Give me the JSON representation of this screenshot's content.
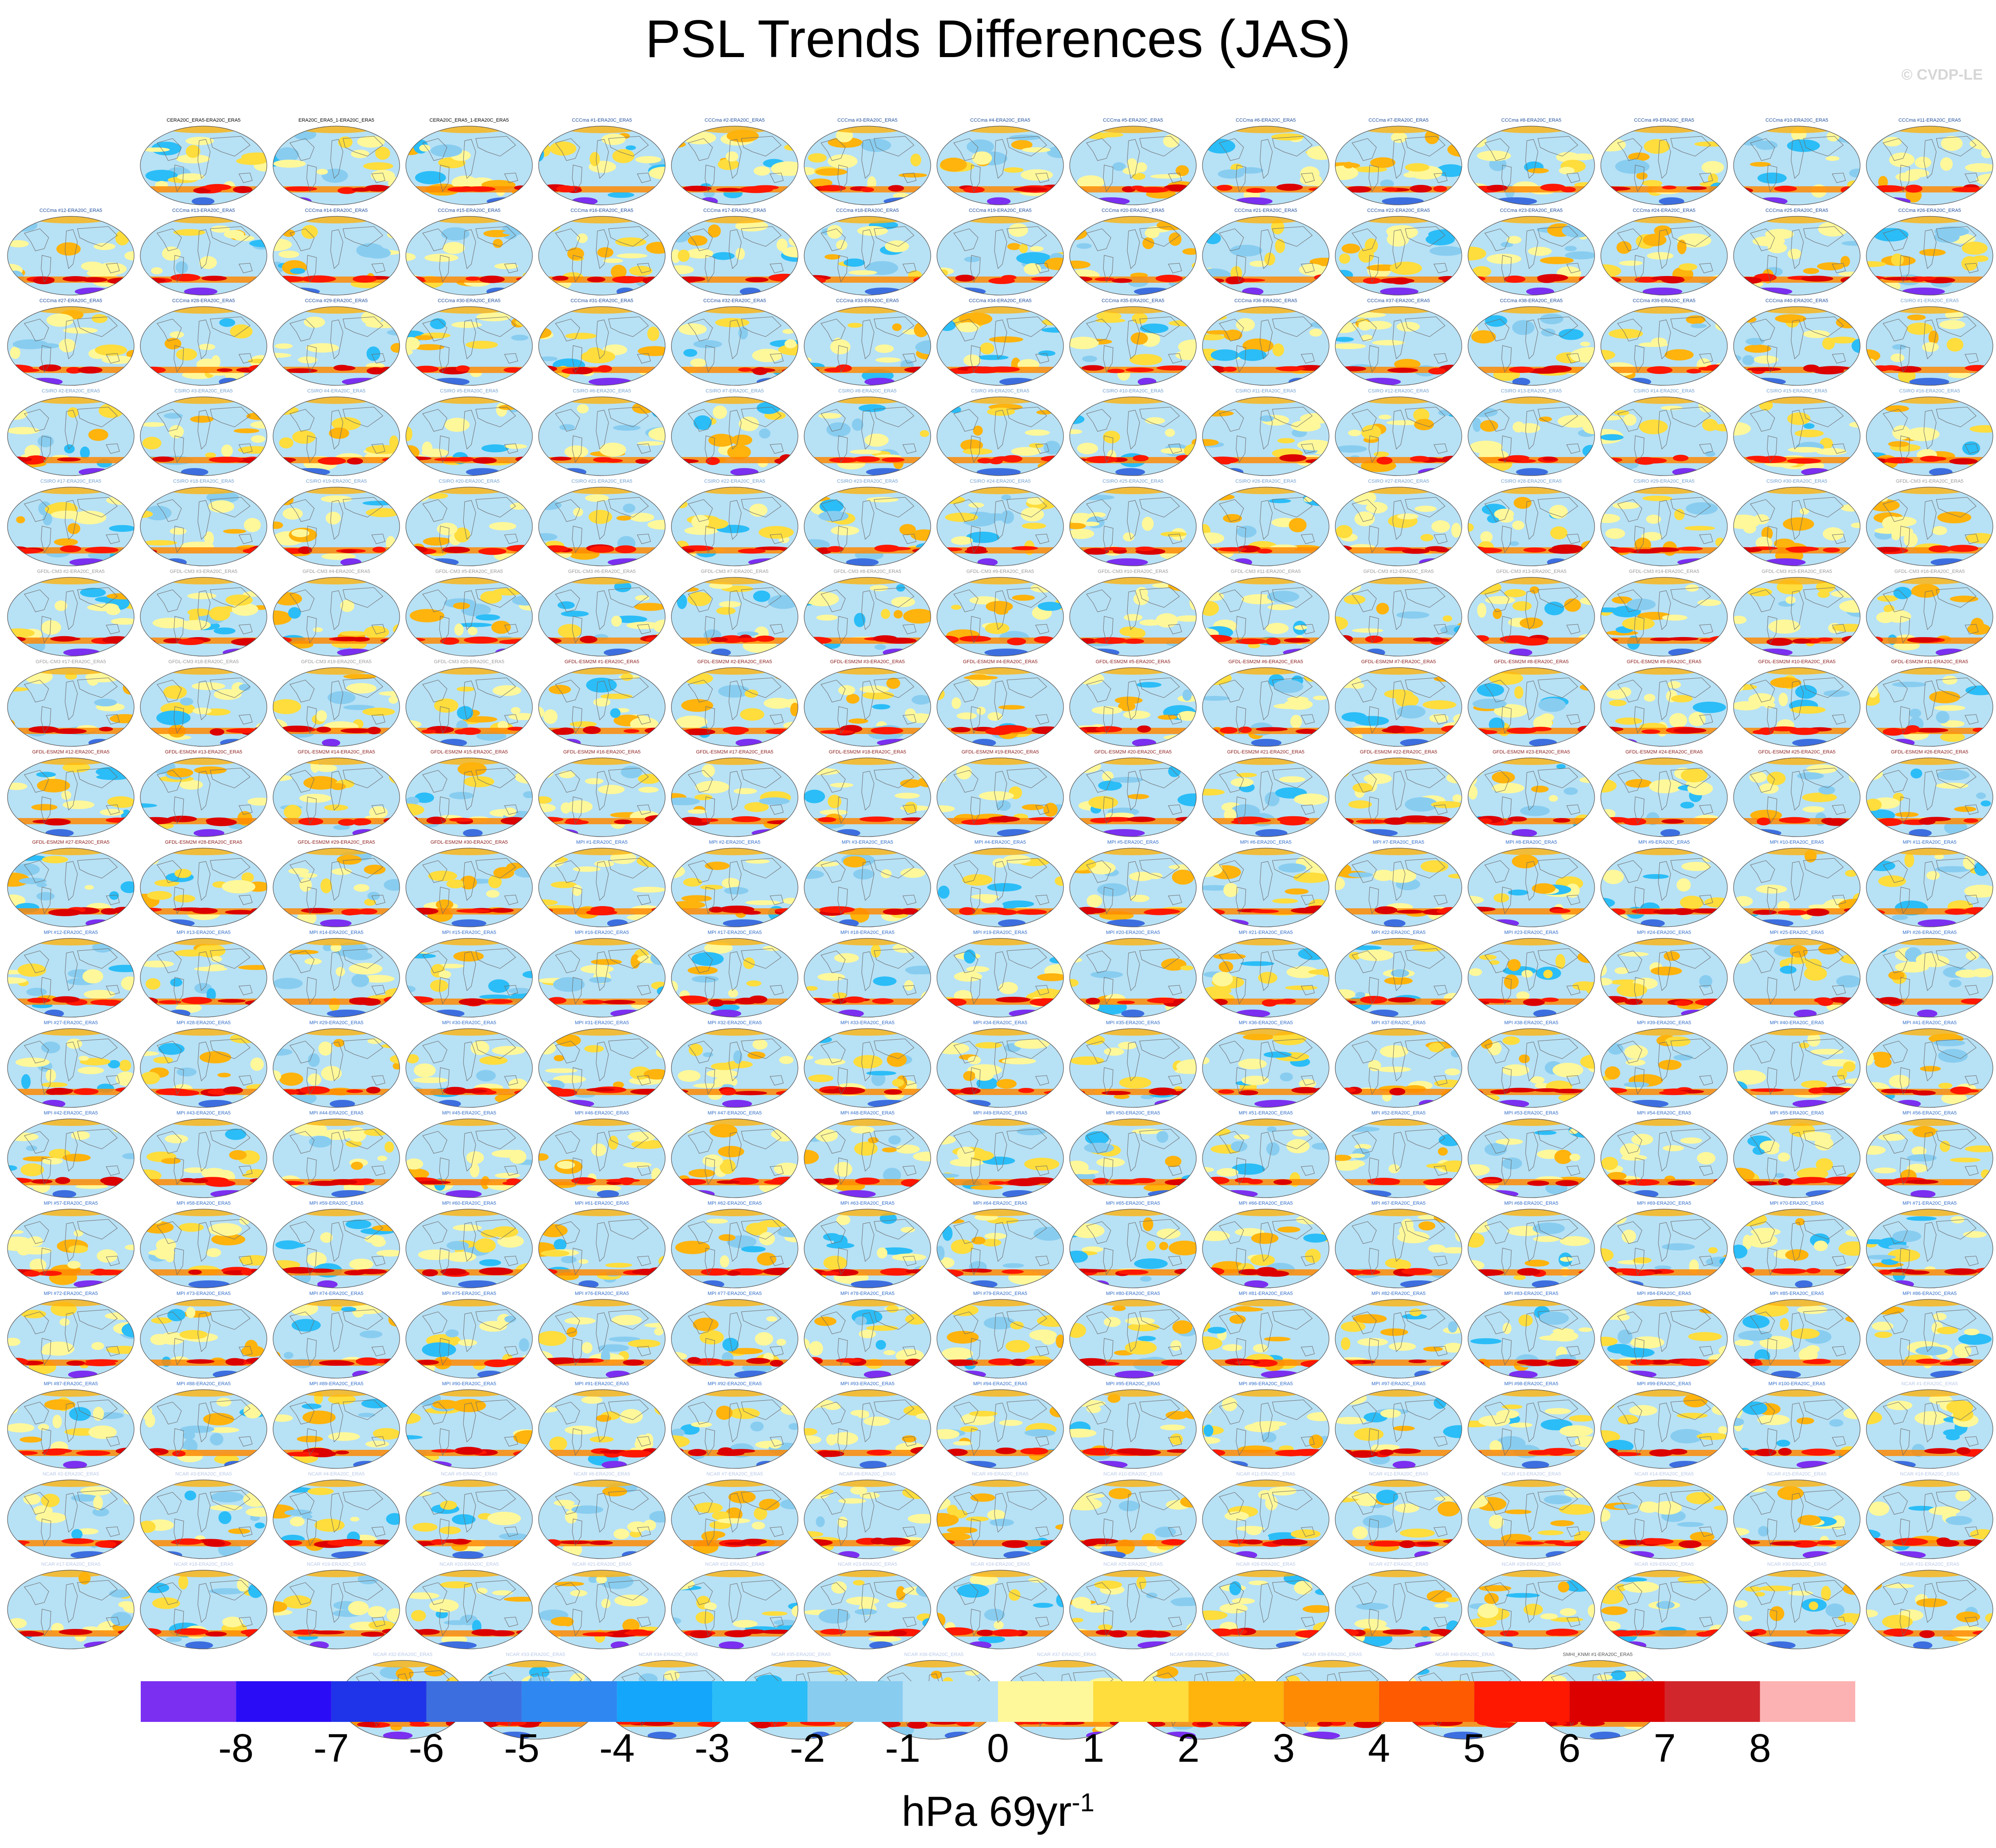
{
  "title": "PSL Trends Differences (JAS)",
  "watermark": "© CVDP-LE",
  "colors": {
    "label_obs": "#000000",
    "label_CCCma": "#1f4e9c",
    "label_CSIRO": "#6f9fd0",
    "label_GFDL-CM3": "#9a9a9a",
    "label_GFDL-ESM2M": "#8b1a1a",
    "label_MPI": "#2f6cc9",
    "label_NCAR": "#b8c8e8",
    "label_SMHI": "#555555",
    "continent_outline": "#6b6b6b"
  },
  "chart_data": {
    "type": "heatmap",
    "title": "PSL Trends Differences (JAS)",
    "projection": "global ellipse (Robinson-like), one map per panel",
    "panel_labels_row1": [
      "CERA20C_ERA5-ERA20C_ERA5",
      "ERA20C_ERA5_1-ERA20C_ERA5",
      "CERA20C_ERA5_1-ERA20C_ERA5",
      "CCCma #1-ERA20C_ERA5",
      "CCCma #2-ERA20C_ERA5",
      "CCCma #3-ERA20C_ERA5",
      "CCCma #4-ERA20C_ERA5",
      "CCCma #5-ERA20C_ERA5",
      "CCCma #6-ERA20C_ERA5",
      "CCCma #7-ERA20C_ERA5",
      "CCCma #8-ERA20C_ERA5",
      "CCCma #9-ERA20C_ERA5",
      "CCCma #10-ERA20C_ERA5",
      "CCCma #11-ERA20C_ERA5"
    ],
    "panel_label_groups": [
      {
        "prefix": "CCCma",
        "first": 12,
        "last": 40,
        "suffix": "-ERA20C_ERA5",
        "color_key": "label_CCCma"
      },
      {
        "prefix": "CSIRO",
        "first": 1,
        "last": 30,
        "suffix": "-ERA20C_ERA5",
        "color_key": "label_CSIRO"
      },
      {
        "prefix": "GFDL-CM3",
        "first": 1,
        "last": 20,
        "suffix": "-ERA20C_ERA5",
        "color_key": "label_GFDL-CM3"
      },
      {
        "prefix": "GFDL-ESM2M",
        "first": 1,
        "last": 30,
        "suffix": "-ERA20C_ERA5",
        "color_key": "label_GFDL-ESM2M"
      },
      {
        "prefix": "MPI",
        "first": 1,
        "last": 100,
        "suffix": "-ERA20C_ERA5",
        "color_key": "label_MPI"
      },
      {
        "prefix": "NCAR",
        "first": 1,
        "last": 40,
        "suffix": "-ERA20C_ERA5",
        "color_key": "label_NCAR"
      },
      {
        "prefix": "SMHI_KNMI",
        "first": 1,
        "last": 16,
        "suffix": "-ERA20C_ERA5",
        "color_key": "label_SMHI"
      }
    ],
    "colorbar": {
      "levels": [
        -8,
        -7,
        -6,
        -5,
        -4,
        -3,
        -2,
        -1,
        0,
        1,
        2,
        3,
        4,
        5,
        6,
        7,
        8
      ],
      "colors": [
        "#7b2ff0",
        "#2a0cf7",
        "#1f34e8",
        "#3d6ee0",
        "#2f88f2",
        "#14a6fb",
        "#2bbdf7",
        "#88cdf0",
        "#b7e1f5",
        "#fff89a",
        "#fedd3c",
        "#feb30d",
        "#fe8a04",
        "#fe5a02",
        "#fe1701",
        "#dc0000",
        "#d1262c",
        "#fcb2b2"
      ],
      "tick_labels": [
        "-8",
        "-7",
        "-6",
        "-5",
        "-4",
        "-3",
        "-2",
        "-1",
        "0",
        "1",
        "2",
        "3",
        "4",
        "5",
        "6",
        "7",
        "8"
      ],
      "units_text": "hPa 69yr",
      "units_exponent": "-1"
    }
  }
}
